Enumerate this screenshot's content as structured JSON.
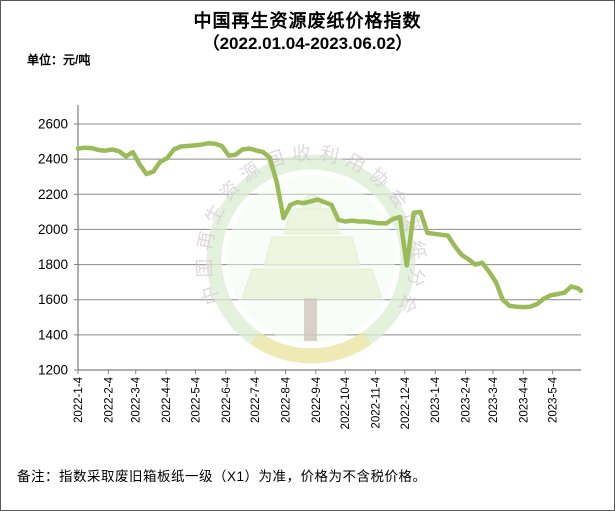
{
  "title": {
    "line1": "中国再生资源废纸价格指数",
    "line2": "（2022.01.04-2023.06.02）"
  },
  "unit_label": "单位：元/吨",
  "note": "备注：指数采取废旧箱板纸一级（X1）为准，价格为不含税价格。",
  "watermark": {
    "ring_text": "中国再生资源回收利用协会废纸分会"
  },
  "chart_data": {
    "type": "line",
    "title": "中国再生资源废纸价格指数（2022.01.04-2023.06.02）",
    "ylabel": "元/吨",
    "ylim": [
      1200,
      2600
    ],
    "y_ticks": [
      1200,
      1400,
      1600,
      1800,
      2000,
      2200,
      2400,
      2600
    ],
    "x_tick_labels": [
      "2022-1-4",
      "2022-2-4",
      "2022-3-4",
      "2022-4-4",
      "2022-5-4",
      "2022-6-4",
      "2022-7-4",
      "2022-8-4",
      "2022-9-4",
      "2022-10-4",
      "2022-11-4",
      "2022-12-4",
      "2023-1-4",
      "2023-2-4",
      "2023-3-4",
      "2023-4-4",
      "2023-5-4"
    ],
    "grid": true,
    "legend": "none",
    "line_color": "#9BBB59",
    "series": [
      {
        "name": "废纸价格指数",
        "dates": [
          "2022-1-4",
          "2022-1-11",
          "2022-1-18",
          "2022-1-25",
          "2022-2-1",
          "2022-2-8",
          "2022-2-15",
          "2022-2-22",
          "2022-3-1",
          "2022-3-8",
          "2022-3-15",
          "2022-3-22",
          "2022-3-29",
          "2022-4-5",
          "2022-4-12",
          "2022-4-19",
          "2022-4-26",
          "2022-5-3",
          "2022-5-10",
          "2022-5-17",
          "2022-5-24",
          "2022-5-31",
          "2022-6-7",
          "2022-6-14",
          "2022-6-21",
          "2022-6-28",
          "2022-7-5",
          "2022-7-12",
          "2022-7-19",
          "2022-7-26",
          "2022-8-2",
          "2022-8-9",
          "2022-8-16",
          "2022-8-23",
          "2022-8-30",
          "2022-9-6",
          "2022-9-13",
          "2022-9-20",
          "2022-9-27",
          "2022-10-4",
          "2022-10-11",
          "2022-10-18",
          "2022-10-25",
          "2022-11-1",
          "2022-11-8",
          "2022-11-15",
          "2022-11-22",
          "2022-11-29",
          "2022-12-6",
          "2022-12-13",
          "2022-12-20",
          "2022-12-27",
          "2023-1-3",
          "2023-1-10",
          "2023-1-17",
          "2023-1-24",
          "2023-1-31",
          "2023-2-7",
          "2023-2-14",
          "2023-2-21",
          "2023-2-28",
          "2023-3-7",
          "2023-3-14",
          "2023-3-21",
          "2023-3-28",
          "2023-4-4",
          "2023-4-11",
          "2023-4-18",
          "2023-4-25",
          "2023-5-2",
          "2023-5-9",
          "2023-5-16",
          "2023-5-23",
          "2023-5-30",
          "2023-6-2"
        ],
        "values": [
          2460,
          2465,
          2462,
          2452,
          2448,
          2455,
          2445,
          2415,
          2440,
          2370,
          2315,
          2330,
          2385,
          2405,
          2455,
          2472,
          2475,
          2478,
          2483,
          2490,
          2488,
          2475,
          2420,
          2425,
          2455,
          2460,
          2450,
          2440,
          2408,
          2270,
          2065,
          2140,
          2155,
          2150,
          2160,
          2170,
          2155,
          2140,
          2055,
          2045,
          2050,
          2045,
          2045,
          2040,
          2035,
          2035,
          2060,
          2070,
          1795,
          2095,
          2100,
          1980,
          1975,
          1970,
          1965,
          1905,
          1855,
          1830,
          1800,
          1810,
          1760,
          1700,
          1600,
          1565,
          1560,
          1558,
          1560,
          1575,
          1605,
          1625,
          1632,
          1640,
          1675,
          1665,
          1650
        ]
      }
    ]
  }
}
